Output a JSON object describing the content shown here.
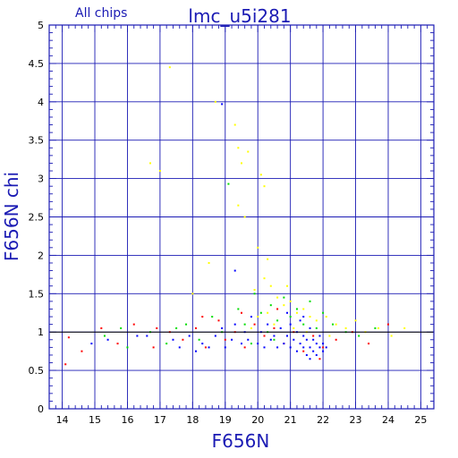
{
  "chart_data": {
    "type": "scatter",
    "title": "lmc_u5i281",
    "subtitle": "All chips",
    "xlabel": "F656N",
    "ylabel": "F656N chi",
    "xlim": [
      13.6,
      25.4
    ],
    "ylim": [
      0,
      5
    ],
    "x_major_ticks": [
      14,
      15,
      16,
      17,
      18,
      19,
      20,
      21,
      22,
      23,
      24,
      25
    ],
    "y_major_ticks": [
      0,
      0.5,
      1,
      1.5,
      2,
      2.5,
      3,
      3.5,
      4,
      4.5,
      5
    ],
    "x_tick_labels": [
      "14",
      "15",
      "16",
      "17",
      "18",
      "19",
      "20",
      "21",
      "22",
      "23",
      "24",
      "25"
    ],
    "y_tick_labels": [
      "0",
      "0.5",
      "1",
      "1.5",
      "2",
      "2.5",
      "3",
      "3.5",
      "4",
      "4.5",
      "5"
    ],
    "grid": true,
    "reference_line_y": 1,
    "colors": {
      "frame": "#1b1bb4",
      "chip1": "#0000ff",
      "chip2": "#00dd00",
      "chip3": "#ff0000",
      "chip4": "#ffff00"
    },
    "series": [
      {
        "color": "#0000ff",
        "points": [
          [
            14.9,
            0.85
          ],
          [
            15.4,
            0.9
          ],
          [
            16.6,
            0.95
          ],
          [
            17.4,
            0.9
          ],
          [
            17.9,
            0.95
          ],
          [
            18.3,
            0.85
          ],
          [
            18.5,
            0.8
          ],
          [
            18.7,
            0.95
          ],
          [
            18.9,
            1.05
          ],
          [
            19.0,
            0.8
          ],
          [
            19.2,
            0.9
          ],
          [
            19.3,
            1.1
          ],
          [
            19.5,
            0.85
          ],
          [
            19.6,
            1.0
          ],
          [
            19.7,
            0.9
          ],
          [
            19.8,
            1.2
          ],
          [
            20.0,
            0.85
          ],
          [
            20.1,
            1.0
          ],
          [
            20.2,
            0.8
          ],
          [
            20.3,
            1.1
          ],
          [
            20.4,
            0.9
          ],
          [
            20.5,
            0.95
          ],
          [
            20.6,
            0.8
          ],
          [
            20.7,
            1.05
          ],
          [
            20.8,
            0.85
          ],
          [
            20.9,
            0.95
          ],
          [
            21.0,
            0.8
          ],
          [
            21.0,
            1.1
          ],
          [
            21.1,
            0.9
          ],
          [
            21.2,
            0.75
          ],
          [
            21.2,
            1.0
          ],
          [
            21.3,
            0.85
          ],
          [
            21.3,
            1.15
          ],
          [
            21.4,
            0.8
          ],
          [
            21.4,
            0.95
          ],
          [
            21.5,
            0.7
          ],
          [
            21.5,
            0.9
          ],
          [
            21.6,
            0.8
          ],
          [
            21.6,
            1.05
          ],
          [
            21.7,
            0.75
          ],
          [
            21.7,
            0.9
          ],
          [
            21.8,
            0.85
          ],
          [
            21.8,
            0.7
          ],
          [
            21.9,
            0.8
          ],
          [
            21.9,
            0.95
          ],
          [
            22.0,
            0.75
          ],
          [
            22.0,
            0.85
          ],
          [
            21.6,
            0.65
          ],
          [
            21.4,
            1.2
          ],
          [
            20.9,
            1.25
          ],
          [
            19.3,
            1.8
          ],
          [
            18.9,
            3.97
          ],
          [
            18.1,
            0.75
          ],
          [
            17.6,
            0.8
          ],
          [
            16.3,
            0.95
          ],
          [
            22.1,
            0.8
          ]
        ]
      },
      {
        "color": "#00dd00",
        "points": [
          [
            15.3,
            0.95
          ],
          [
            16.0,
            0.8
          ],
          [
            16.7,
            1.0
          ],
          [
            17.2,
            0.85
          ],
          [
            17.8,
            1.1
          ],
          [
            18.2,
            0.9
          ],
          [
            18.6,
            1.2
          ],
          [
            18.9,
            1.0
          ],
          [
            19.1,
            2.93
          ],
          [
            19.4,
            1.3
          ],
          [
            19.6,
            1.1
          ],
          [
            19.9,
            1.5
          ],
          [
            20.1,
            1.25
          ],
          [
            20.3,
            1.0
          ],
          [
            20.4,
            1.35
          ],
          [
            20.6,
            1.15
          ],
          [
            20.8,
            1.45
          ],
          [
            21.0,
            1.2
          ],
          [
            21.2,
            1.3
          ],
          [
            21.4,
            1.1
          ],
          [
            21.6,
            1.4
          ],
          [
            21.8,
            1.05
          ],
          [
            22.0,
            1.25
          ],
          [
            22.3,
            1.1
          ],
          [
            22.7,
            1.0
          ],
          [
            23.1,
            0.95
          ],
          [
            23.6,
            1.05
          ],
          [
            20.5,
            0.9
          ],
          [
            19.8,
            0.85
          ],
          [
            17.5,
            1.05
          ],
          [
            15.8,
            1.05
          ]
        ]
      },
      {
        "color": "#ff0000",
        "points": [
          [
            14.1,
            0.58
          ],
          [
            14.2,
            0.93
          ],
          [
            14.6,
            0.75
          ],
          [
            15.2,
            1.05
          ],
          [
            15.7,
            0.85
          ],
          [
            16.2,
            1.1
          ],
          [
            16.8,
            0.8
          ],
          [
            17.3,
            1.0
          ],
          [
            17.7,
            0.9
          ],
          [
            18.1,
            1.05
          ],
          [
            18.4,
            0.8
          ],
          [
            18.8,
            1.15
          ],
          [
            19.0,
            0.9
          ],
          [
            19.3,
            1.0
          ],
          [
            19.6,
            0.8
          ],
          [
            19.9,
            1.1
          ],
          [
            20.2,
            0.95
          ],
          [
            20.5,
            1.05
          ],
          [
            20.8,
            0.85
          ],
          [
            21.1,
            1.0
          ],
          [
            21.4,
            0.75
          ],
          [
            21.7,
            0.95
          ],
          [
            22.0,
            0.8
          ],
          [
            22.4,
            0.9
          ],
          [
            22.9,
            1.0
          ],
          [
            23.4,
            0.85
          ],
          [
            24.0,
            1.1
          ],
          [
            21.9,
            0.65
          ],
          [
            20.6,
            1.3
          ],
          [
            19.5,
            1.25
          ],
          [
            18.3,
            1.2
          ],
          [
            16.9,
            1.05
          ]
        ]
      },
      {
        "color": "#ffff00",
        "points": [
          [
            16.7,
            3.2
          ],
          [
            17.0,
            3.1
          ],
          [
            17.3,
            4.45
          ],
          [
            18.7,
            4.0
          ],
          [
            19.3,
            3.7
          ],
          [
            19.4,
            3.4
          ],
          [
            19.5,
            3.2
          ],
          [
            19.7,
            3.35
          ],
          [
            19.4,
            2.65
          ],
          [
            19.6,
            2.5
          ],
          [
            20.1,
            3.05
          ],
          [
            20.2,
            2.9
          ],
          [
            20.0,
            2.1
          ],
          [
            20.3,
            1.95
          ],
          [
            20.2,
            1.7
          ],
          [
            19.9,
            1.55
          ],
          [
            20.4,
            1.6
          ],
          [
            20.6,
            1.45
          ],
          [
            20.8,
            1.35
          ],
          [
            21.0,
            1.4
          ],
          [
            21.2,
            1.25
          ],
          [
            21.4,
            1.3
          ],
          [
            21.6,
            1.2
          ],
          [
            21.8,
            1.15
          ],
          [
            22.1,
            1.2
          ],
          [
            22.4,
            1.1
          ],
          [
            22.7,
            1.05
          ],
          [
            23.0,
            1.15
          ],
          [
            23.3,
            1.0
          ],
          [
            23.7,
            1.05
          ],
          [
            24.1,
            0.95
          ],
          [
            24.5,
            1.05
          ],
          [
            20.5,
            1.1
          ],
          [
            20.0,
            1.2
          ],
          [
            19.8,
            1.05
          ],
          [
            18.5,
            1.9
          ],
          [
            18.0,
            1.5
          ],
          [
            21.5,
            1.0
          ],
          [
            22.2,
            0.95
          ],
          [
            20.9,
            1.6
          ],
          [
            20.3,
            1.25
          ],
          [
            21.1,
            1.05
          ]
        ]
      }
    ]
  }
}
